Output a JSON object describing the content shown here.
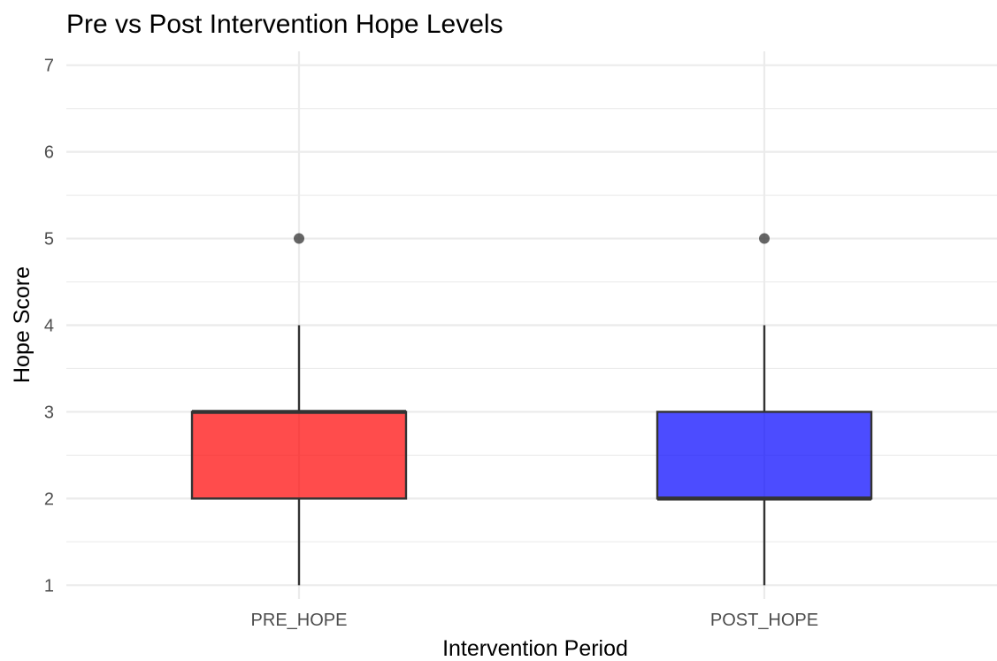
{
  "chart_data": {
    "type": "box",
    "title": "Pre vs Post Intervention Hope Levels",
    "xlabel": "Intervention Period",
    "ylabel": "Hope Score",
    "categories": [
      "PRE_HOPE",
      "POST_HOPE"
    ],
    "ylim": [
      0.84,
      7.16
    ],
    "yticks": [
      1,
      2,
      3,
      4,
      5,
      6,
      7
    ],
    "grid": true,
    "boxes": [
      {
        "category": "PRE_HOPE",
        "min": 1,
        "q1": 2,
        "median": 3,
        "q3": 3,
        "max": 4,
        "outliers": [
          5
        ],
        "fill": "#ff0000",
        "fill_opacity": 0.7
      },
      {
        "category": "POST_HOPE",
        "min": 1,
        "q1": 2,
        "median": 2,
        "q3": 3,
        "max": 4,
        "outliers": [
          5
        ],
        "fill": "#0000ff",
        "fill_opacity": 0.7
      }
    ],
    "colors": {
      "outline": "#333333",
      "outlier": "#333333",
      "grid": "#ebebeb",
      "tick_text": "#4d4d4d"
    }
  }
}
